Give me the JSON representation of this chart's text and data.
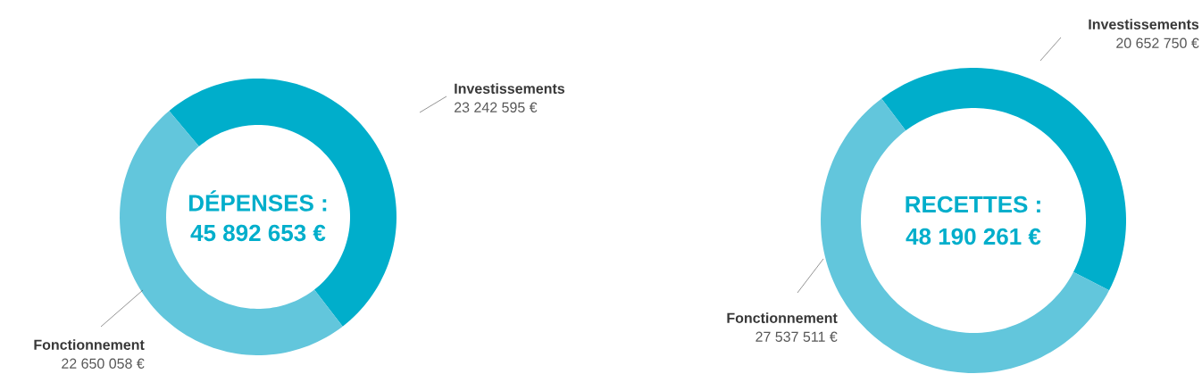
{
  "chart_data": [
    {
      "type": "donut",
      "title": "DÉPENSES :",
      "subtitle": "45 892 653 €",
      "categories": [
        "Investissements",
        "Fonctionnement"
      ],
      "values": [
        23242595,
        22650058
      ],
      "colors": [
        "#00aecb",
        "#62c6dc"
      ],
      "value_labels": [
        "23 242 595 €",
        "22 650 058 €"
      ]
    },
    {
      "type": "donut",
      "title": "RECETTES :",
      "subtitle": "48 190 261 €",
      "categories": [
        "Investissements",
        "Fonctionnement"
      ],
      "values": [
        20652750,
        27537511
      ],
      "colors": [
        "#00aecb",
        "#62c6dc"
      ],
      "value_labels": [
        "20 652 750 €",
        "27 537 511 €"
      ]
    }
  ]
}
